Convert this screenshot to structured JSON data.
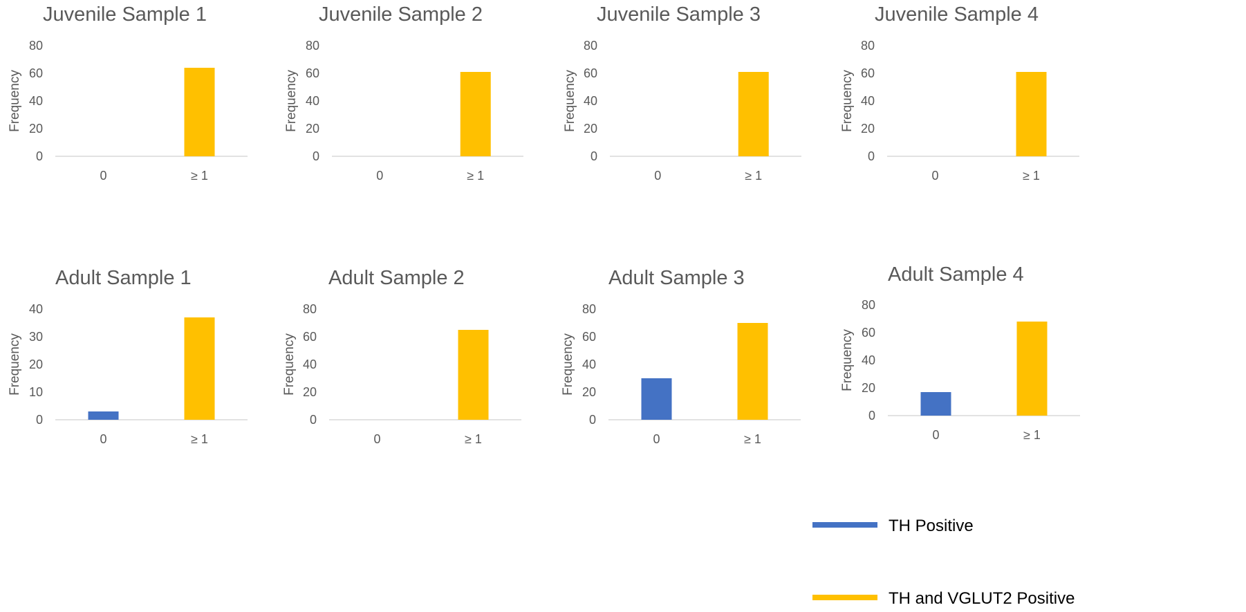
{
  "colors": {
    "th_positive": "#4472C4",
    "th_vglut2_positive": "#FFC000"
  },
  "legend": {
    "items": [
      {
        "label": "TH Positive",
        "color": "#4472C4"
      },
      {
        "label": "TH and VGLUT2 Positive",
        "color": "#FFC000"
      }
    ]
  },
  "chart_data": [
    {
      "type": "bar",
      "title": "Juvenile Sample 1",
      "categories": [
        "0",
        "≥ 1"
      ],
      "ylabel": "Frequency",
      "ylim": [
        0,
        80
      ],
      "yticks": [
        "0",
        "20",
        "40",
        "60",
        "80"
      ],
      "grid": false,
      "series": [
        {
          "name": "TH Positive",
          "values": [
            0,
            0
          ]
        },
        {
          "name": "TH and VGLUT2 Positive",
          "values": [
            0,
            64
          ]
        }
      ]
    },
    {
      "type": "bar",
      "title": "Juvenile Sample 2",
      "categories": [
        "0",
        "≥ 1"
      ],
      "ylabel": "Frequency",
      "ylim": [
        0,
        80
      ],
      "yticks": [
        "0",
        "20",
        "40",
        "60",
        "80"
      ],
      "grid": false,
      "series": [
        {
          "name": "TH Positive",
          "values": [
            0,
            0
          ]
        },
        {
          "name": "TH and VGLUT2 Positive",
          "values": [
            0,
            61
          ]
        }
      ]
    },
    {
      "type": "bar",
      "title": "Juvenile Sample 3",
      "categories": [
        "0",
        "≥ 1"
      ],
      "ylabel": "Frequency",
      "ylim": [
        0,
        80
      ],
      "yticks": [
        "0",
        "20",
        "40",
        "60",
        "80"
      ],
      "grid": false,
      "series": [
        {
          "name": "TH Positive",
          "values": [
            0,
            0
          ]
        },
        {
          "name": "TH and VGLUT2 Positive",
          "values": [
            0,
            61
          ]
        }
      ]
    },
    {
      "type": "bar",
      "title": "Juvenile Sample 4",
      "categories": [
        "0",
        "≥ 1"
      ],
      "ylabel": "Frequency",
      "ylim": [
        0,
        80
      ],
      "yticks": [
        "0",
        "20",
        "40",
        "60",
        "80"
      ],
      "grid": false,
      "series": [
        {
          "name": "TH Positive",
          "values": [
            0,
            0
          ]
        },
        {
          "name": "TH and VGLUT2 Positive",
          "values": [
            0,
            61
          ]
        }
      ]
    },
    {
      "type": "bar",
      "title": "Adult Sample 1",
      "categories": [
        "0",
        "≥ 1"
      ],
      "ylabel": "Frequency",
      "ylim": [
        0,
        40
      ],
      "yticks": [
        "0",
        "10",
        "20",
        "30",
        "40"
      ],
      "grid": false,
      "series": [
        {
          "name": "TH Positive",
          "values": [
            3,
            0
          ]
        },
        {
          "name": "TH and VGLUT2 Positive",
          "values": [
            0,
            37
          ]
        }
      ]
    },
    {
      "type": "bar",
      "title": "Adult Sample 2",
      "categories": [
        "0",
        "≥ 1"
      ],
      "ylabel": "Frequency",
      "ylim": [
        0,
        80
      ],
      "yticks": [
        "0",
        "20",
        "40",
        "60",
        "80"
      ],
      "grid": false,
      "series": [
        {
          "name": "TH Positive",
          "values": [
            0,
            0
          ]
        },
        {
          "name": "TH and VGLUT2 Positive",
          "values": [
            0,
            65
          ]
        }
      ]
    },
    {
      "type": "bar",
      "title": "Adult Sample 3",
      "categories": [
        "0",
        "≥ 1"
      ],
      "ylabel": "Frequency",
      "ylim": [
        0,
        80
      ],
      "yticks": [
        "0",
        "20",
        "40",
        "60",
        "80"
      ],
      "grid": false,
      "series": [
        {
          "name": "TH Positive",
          "values": [
            30,
            0
          ]
        },
        {
          "name": "TH and VGLUT2 Positive",
          "values": [
            0,
            70
          ]
        }
      ]
    },
    {
      "type": "bar",
      "title": "Adult Sample 4",
      "categories": [
        "0",
        "≥ 1"
      ],
      "ylabel": "Frequency",
      "ylim": [
        0,
        80
      ],
      "yticks": [
        "0",
        "20",
        "40",
        "60",
        "80"
      ],
      "grid": false,
      "series": [
        {
          "name": "TH Positive",
          "values": [
            17,
            0
          ]
        },
        {
          "name": "TH and VGLUT2 Positive",
          "values": [
            0,
            68
          ]
        }
      ]
    }
  ]
}
